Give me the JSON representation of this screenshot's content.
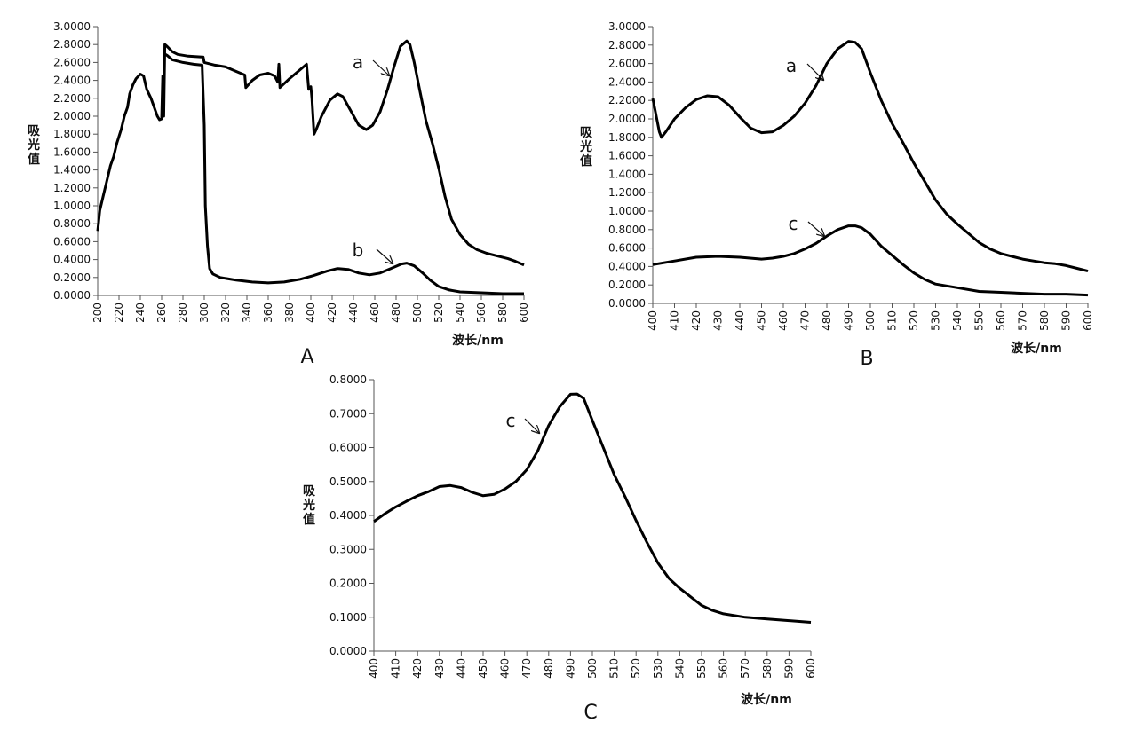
{
  "chart_data": [
    {
      "type": "line",
      "panel_label": "A",
      "xlabel": "波长/nm",
      "ylabel": "吸光值",
      "xlim": [
        200,
        600
      ],
      "ylim": [
        0,
        3.0
      ],
      "x_ticks": [
        "200",
        "220",
        "240",
        "260",
        "280",
        "300",
        "320",
        "340",
        "360",
        "380",
        "400",
        "420",
        "440",
        "460",
        "480",
        "500",
        "520",
        "540",
        "560",
        "580",
        "600"
      ],
      "y_ticks": [
        "0.0000",
        "0.2000",
        "0.4000",
        "0.6000",
        "0.8000",
        "1.0000",
        "1.2000",
        "1.4000",
        "1.6000",
        "1.8000",
        "2.0000",
        "2.2000",
        "2.4000",
        "2.6000",
        "2.8000",
        "3.0000"
      ],
      "series": [
        {
          "name": "a",
          "points": [
            [
              200,
              0.72
            ],
            [
              202,
              0.95
            ],
            [
              205,
              1.1
            ],
            [
              208,
              1.25
            ],
            [
              212,
              1.45
            ],
            [
              215,
              1.55
            ],
            [
              218,
              1.7
            ],
            [
              222,
              1.85
            ],
            [
              225,
              2.0
            ],
            [
              228,
              2.1
            ],
            [
              230,
              2.25
            ],
            [
              233,
              2.35
            ],
            [
              236,
              2.42
            ],
            [
              240,
              2.47
            ],
            [
              243,
              2.45
            ],
            [
              246,
              2.3
            ],
            [
              250,
              2.2
            ],
            [
              253,
              2.1
            ],
            [
              256,
              2.0
            ],
            [
              258,
              1.96
            ],
            [
              260,
              1.97
            ],
            [
              261,
              2.45
            ],
            [
              262,
              2.0
            ],
            [
              263,
              2.8
            ],
            [
              265,
              2.78
            ],
            [
              270,
              2.72
            ],
            [
              275,
              2.69
            ],
            [
              285,
              2.67
            ],
            [
              298,
              2.66
            ],
            [
              299,
              2.66
            ],
            [
              300,
              2.6
            ],
            [
              310,
              2.57
            ],
            [
              320,
              2.55
            ],
            [
              330,
              2.5
            ],
            [
              338,
              2.46
            ],
            [
              339,
              2.32
            ],
            [
              345,
              2.4
            ],
            [
              352,
              2.46
            ],
            [
              360,
              2.48
            ],
            [
              366,
              2.45
            ],
            [
              369,
              2.38
            ],
            [
              370,
              2.58
            ],
            [
              371,
              2.32
            ],
            [
              380,
              2.42
            ],
            [
              390,
              2.52
            ],
            [
              396,
              2.58
            ],
            [
              398,
              2.3
            ],
            [
              400,
              2.33
            ],
            [
              401,
              2.2
            ],
            [
              403,
              1.8
            ],
            [
              405,
              1.85
            ],
            [
              410,
              2.0
            ],
            [
              418,
              2.18
            ],
            [
              425,
              2.25
            ],
            [
              430,
              2.22
            ],
            [
              438,
              2.05
            ],
            [
              445,
              1.9
            ],
            [
              452,
              1.85
            ],
            [
              458,
              1.9
            ],
            [
              465,
              2.05
            ],
            [
              472,
              2.3
            ],
            [
              478,
              2.55
            ],
            [
              484,
              2.78
            ],
            [
              490,
              2.84
            ],
            [
              493,
              2.8
            ],
            [
              497,
              2.6
            ],
            [
              502,
              2.3
            ],
            [
              508,
              1.95
            ],
            [
              514,
              1.7
            ],
            [
              520,
              1.42
            ],
            [
              526,
              1.1
            ],
            [
              532,
              0.85
            ],
            [
              540,
              0.68
            ],
            [
              548,
              0.57
            ],
            [
              556,
              0.51
            ],
            [
              565,
              0.47
            ],
            [
              575,
              0.44
            ],
            [
              585,
              0.41
            ],
            [
              592,
              0.38
            ],
            [
              600,
              0.34
            ]
          ]
        },
        {
          "name": "b",
          "points": [
            [
              262,
              2.7
            ],
            [
              265,
              2.68
            ],
            [
              270,
              2.63
            ],
            [
              280,
              2.6
            ],
            [
              290,
              2.58
            ],
            [
              298,
              2.57
            ],
            [
              300,
              1.9
            ],
            [
              301,
              1.0
            ],
            [
              303,
              0.55
            ],
            [
              305,
              0.3
            ],
            [
              308,
              0.24
            ],
            [
              315,
              0.2
            ],
            [
              330,
              0.17
            ],
            [
              345,
              0.15
            ],
            [
              360,
              0.14
            ],
            [
              375,
              0.15
            ],
            [
              390,
              0.18
            ],
            [
              402,
              0.22
            ],
            [
              415,
              0.27
            ],
            [
              425,
              0.3
            ],
            [
              435,
              0.29
            ],
            [
              445,
              0.25
            ],
            [
              455,
              0.23
            ],
            [
              465,
              0.25
            ],
            [
              475,
              0.3
            ],
            [
              485,
              0.35
            ],
            [
              490,
              0.36
            ],
            [
              497,
              0.33
            ],
            [
              505,
              0.25
            ],
            [
              512,
              0.17
            ],
            [
              520,
              0.1
            ],
            [
              530,
              0.06
            ],
            [
              540,
              0.04
            ],
            [
              560,
              0.03
            ],
            [
              580,
              0.02
            ],
            [
              600,
              0.02
            ]
          ]
        }
      ]
    },
    {
      "type": "line",
      "panel_label": "B",
      "xlabel": "波长/nm",
      "ylabel": "吸光值",
      "xlim": [
        400,
        600
      ],
      "ylim": [
        0,
        3.0
      ],
      "x_ticks": [
        "400",
        "410",
        "420",
        "430",
        "440",
        "450",
        "460",
        "470",
        "480",
        "490",
        "500",
        "510",
        "520",
        "530",
        "540",
        "550",
        "560",
        "570",
        "580",
        "590",
        "600"
      ],
      "y_ticks": [
        "0.0000",
        "0.2000",
        "0.4000",
        "0.6000",
        "0.8000",
        "1.0000",
        "1.2000",
        "1.4000",
        "1.6000",
        "1.8000",
        "2.0000",
        "2.2000",
        "2.4000",
        "2.6000",
        "2.8000",
        "3.0000"
      ],
      "series": [
        {
          "name": "a",
          "points": [
            [
              400,
              2.22
            ],
            [
              401,
              2.1
            ],
            [
              403,
              1.86
            ],
            [
              404,
              1.8
            ],
            [
              406,
              1.86
            ],
            [
              410,
              2.0
            ],
            [
              415,
              2.12
            ],
            [
              420,
              2.21
            ],
            [
              425,
              2.25
            ],
            [
              430,
              2.24
            ],
            [
              435,
              2.15
            ],
            [
              440,
              2.02
            ],
            [
              445,
              1.9
            ],
            [
              450,
              1.85
            ],
            [
              455,
              1.86
            ],
            [
              460,
              1.93
            ],
            [
              465,
              2.03
            ],
            [
              470,
              2.17
            ],
            [
              475,
              2.36
            ],
            [
              480,
              2.6
            ],
            [
              485,
              2.76
            ],
            [
              490,
              2.84
            ],
            [
              493,
              2.83
            ],
            [
              496,
              2.76
            ],
            [
              500,
              2.5
            ],
            [
              505,
              2.2
            ],
            [
              510,
              1.95
            ],
            [
              515,
              1.74
            ],
            [
              520,
              1.52
            ],
            [
              525,
              1.32
            ],
            [
              530,
              1.12
            ],
            [
              535,
              0.97
            ],
            [
              540,
              0.86
            ],
            [
              545,
              0.76
            ],
            [
              550,
              0.66
            ],
            [
              555,
              0.59
            ],
            [
              560,
              0.54
            ],
            [
              565,
              0.51
            ],
            [
              570,
              0.48
            ],
            [
              575,
              0.46
            ],
            [
              580,
              0.44
            ],
            [
              585,
              0.43
            ],
            [
              590,
              0.41
            ],
            [
              595,
              0.38
            ],
            [
              600,
              0.35
            ]
          ]
        },
        {
          "name": "c",
          "points": [
            [
              400,
              0.42
            ],
            [
              410,
              0.46
            ],
            [
              420,
              0.5
            ],
            [
              430,
              0.51
            ],
            [
              440,
              0.5
            ],
            [
              450,
              0.48
            ],
            [
              455,
              0.49
            ],
            [
              460,
              0.51
            ],
            [
              465,
              0.54
            ],
            [
              470,
              0.59
            ],
            [
              475,
              0.65
            ],
            [
              480,
              0.73
            ],
            [
              485,
              0.8
            ],
            [
              490,
              0.84
            ],
            [
              493,
              0.84
            ],
            [
              496,
              0.82
            ],
            [
              500,
              0.75
            ],
            [
              505,
              0.62
            ],
            [
              510,
              0.52
            ],
            [
              515,
              0.42
            ],
            [
              520,
              0.33
            ],
            [
              525,
              0.26
            ],
            [
              530,
              0.21
            ],
            [
              540,
              0.17
            ],
            [
              550,
              0.13
            ],
            [
              560,
              0.12
            ],
            [
              570,
              0.11
            ],
            [
              580,
              0.1
            ],
            [
              590,
              0.1
            ],
            [
              600,
              0.09
            ]
          ]
        }
      ]
    },
    {
      "type": "line",
      "panel_label": "C",
      "xlabel": "波长/nm",
      "ylabel": "吸光值",
      "xlim": [
        400,
        600
      ],
      "ylim": [
        0,
        0.8
      ],
      "x_ticks": [
        "400",
        "410",
        "420",
        "430",
        "440",
        "450",
        "460",
        "470",
        "480",
        "490",
        "500",
        "510",
        "520",
        "530",
        "540",
        "550",
        "560",
        "570",
        "580",
        "590",
        "600"
      ],
      "y_ticks": [
        "0.0000",
        "0.1000",
        "0.2000",
        "0.3000",
        "0.4000",
        "0.5000",
        "0.6000",
        "0.7000",
        "0.8000"
      ],
      "series": [
        {
          "name": "c",
          "points": [
            [
              400,
              0.382
            ],
            [
              405,
              0.405
            ],
            [
              410,
              0.425
            ],
            [
              415,
              0.442
            ],
            [
              420,
              0.458
            ],
            [
              425,
              0.47
            ],
            [
              430,
              0.485
            ],
            [
              435,
              0.488
            ],
            [
              440,
              0.482
            ],
            [
              445,
              0.468
            ],
            [
              450,
              0.458
            ],
            [
              455,
              0.462
            ],
            [
              460,
              0.478
            ],
            [
              465,
              0.5
            ],
            [
              470,
              0.535
            ],
            [
              475,
              0.59
            ],
            [
              480,
              0.665
            ],
            [
              485,
              0.72
            ],
            [
              490,
              0.757
            ],
            [
              493,
              0.758
            ],
            [
              496,
              0.745
            ],
            [
              500,
              0.68
            ],
            [
              505,
              0.6
            ],
            [
              510,
              0.52
            ],
            [
              515,
              0.455
            ],
            [
              520,
              0.385
            ],
            [
              525,
              0.32
            ],
            [
              530,
              0.26
            ],
            [
              535,
              0.215
            ],
            [
              540,
              0.185
            ],
            [
              545,
              0.16
            ],
            [
              550,
              0.135
            ],
            [
              555,
              0.12
            ],
            [
              560,
              0.11
            ],
            [
              570,
              0.1
            ],
            [
              580,
              0.095
            ],
            [
              590,
              0.09
            ],
            [
              600,
              0.085
            ]
          ]
        }
      ]
    }
  ]
}
